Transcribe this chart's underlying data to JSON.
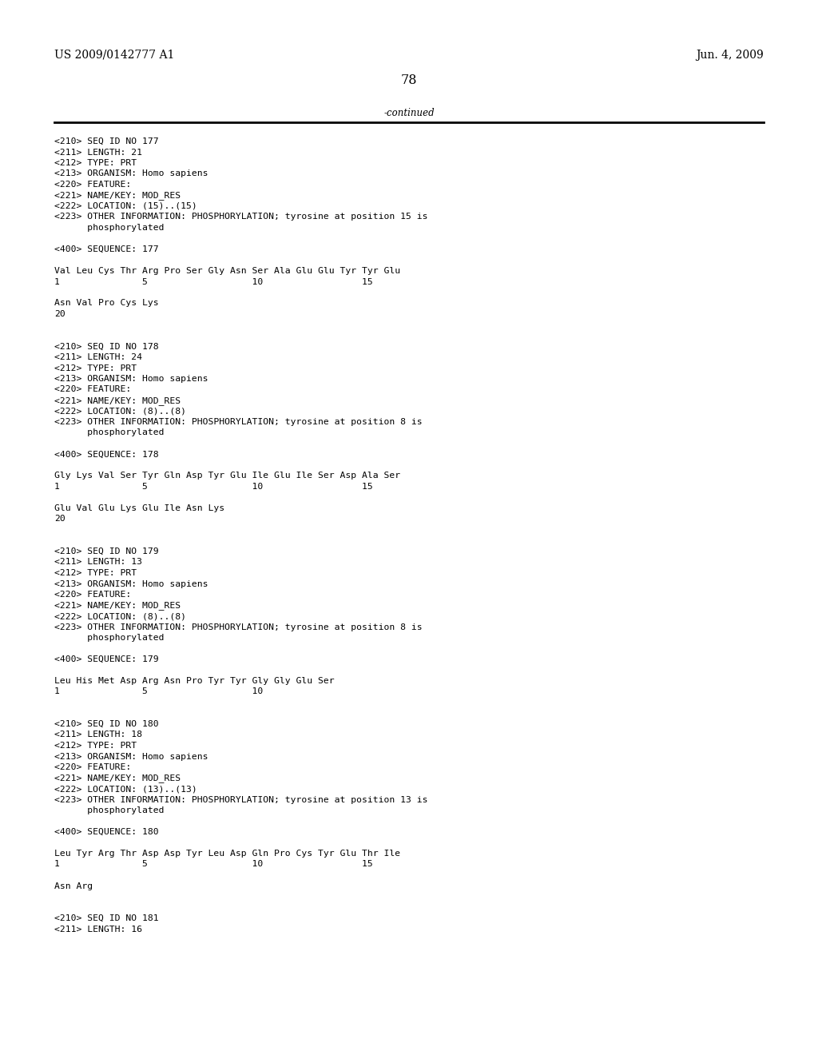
{
  "header_left": "US 2009/0142777 A1",
  "header_right": "Jun. 4, 2009",
  "page_number": "78",
  "continued_label": "-continued",
  "background_color": "#ffffff",
  "text_color": "#000000",
  "font_size_header": 10.0,
  "font_size_page_num": 11.5,
  "font_size_body": 8.2,
  "content": [
    "<210> SEQ ID NO 177",
    "<211> LENGTH: 21",
    "<212> TYPE: PRT",
    "<213> ORGANISM: Homo sapiens",
    "<220> FEATURE:",
    "<221> NAME/KEY: MOD_RES",
    "<222> LOCATION: (15)..(15)",
    "<223> OTHER INFORMATION: PHOSPHORYLATION; tyrosine at position 15 is",
    "      phosphorylated",
    "",
    "<400> SEQUENCE: 177",
    "",
    "Val Leu Cys Thr Arg Pro Ser Gly Asn Ser Ala Glu Glu Tyr Tyr Glu",
    "1               5                   10                  15",
    "",
    "Asn Val Pro Cys Lys",
    "20",
    "",
    "",
    "<210> SEQ ID NO 178",
    "<211> LENGTH: 24",
    "<212> TYPE: PRT",
    "<213> ORGANISM: Homo sapiens",
    "<220> FEATURE:",
    "<221> NAME/KEY: MOD_RES",
    "<222> LOCATION: (8)..(8)",
    "<223> OTHER INFORMATION: PHOSPHORYLATION; tyrosine at position 8 is",
    "      phosphorylated",
    "",
    "<400> SEQUENCE: 178",
    "",
    "Gly Lys Val Ser Tyr Gln Asp Tyr Glu Ile Glu Ile Ser Asp Ala Ser",
    "1               5                   10                  15",
    "",
    "Glu Val Glu Lys Glu Ile Asn Lys",
    "20",
    "",
    "",
    "<210> SEQ ID NO 179",
    "<211> LENGTH: 13",
    "<212> TYPE: PRT",
    "<213> ORGANISM: Homo sapiens",
    "<220> FEATURE:",
    "<221> NAME/KEY: MOD_RES",
    "<222> LOCATION: (8)..(8)",
    "<223> OTHER INFORMATION: PHOSPHORYLATION; tyrosine at position 8 is",
    "      phosphorylated",
    "",
    "<400> SEQUENCE: 179",
    "",
    "Leu His Met Asp Arg Asn Pro Tyr Tyr Gly Gly Glu Ser",
    "1               5                   10",
    "",
    "",
    "<210> SEQ ID NO 180",
    "<211> LENGTH: 18",
    "<212> TYPE: PRT",
    "<213> ORGANISM: Homo sapiens",
    "<220> FEATURE:",
    "<221> NAME/KEY: MOD_RES",
    "<222> LOCATION: (13)..(13)",
    "<223> OTHER INFORMATION: PHOSPHORYLATION; tyrosine at position 13 is",
    "      phosphorylated",
    "",
    "<400> SEQUENCE: 180",
    "",
    "Leu Tyr Arg Thr Asp Asp Tyr Leu Asp Gln Pro Cys Tyr Glu Thr Ile",
    "1               5                   10                  15",
    "",
    "Asn Arg",
    "",
    "",
    "<210> SEQ ID NO 181",
    "<211> LENGTH: 16"
  ]
}
